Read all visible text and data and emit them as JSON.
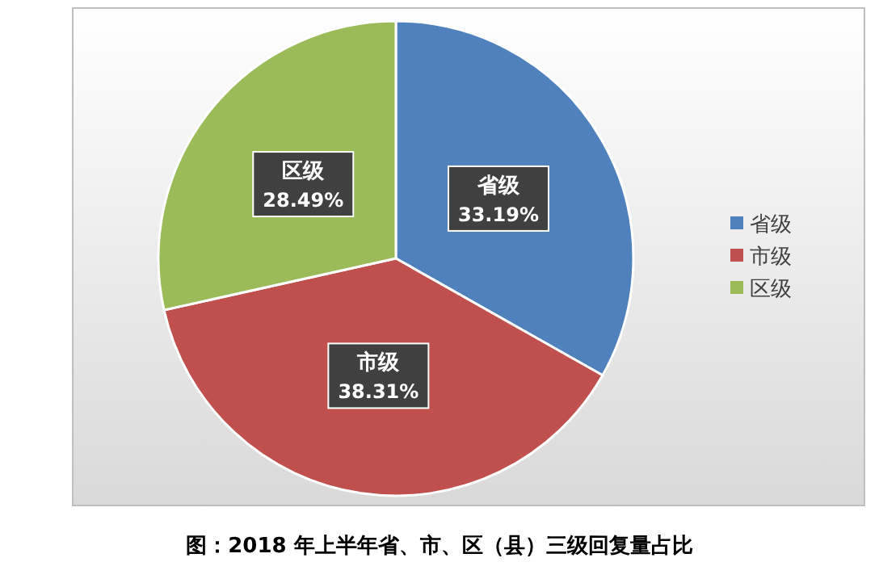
{
  "chart_data": {
    "type": "pie",
    "categories": [
      "省级",
      "市级",
      "区级"
    ],
    "values": [
      33.19,
      38.31,
      28.49
    ],
    "colors": [
      "#4f81bd",
      "#c0504d",
      "#9bbb59"
    ],
    "value_labels": [
      "33.19%",
      "38.31%",
      "28.49%"
    ],
    "legend": "right",
    "annotations": [
      "图：2018 年上半年省、市、区（县）三级回复量占比"
    ]
  }
}
